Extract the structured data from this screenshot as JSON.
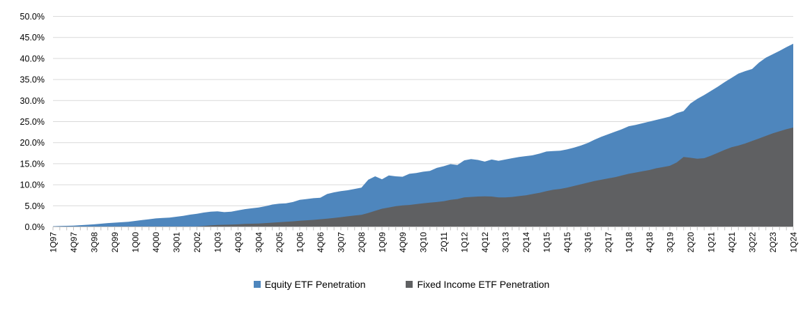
{
  "chart_data": {
    "type": "area",
    "stacked": false,
    "title": "",
    "xlabel": "",
    "ylabel": "",
    "ylim": [
      0,
      50
    ],
    "y_tick_step": 5,
    "y_tick_labels": [
      "0.0%",
      "5.0%",
      "10.0%",
      "15.0%",
      "20.0%",
      "25.0%",
      "30.0%",
      "35.0%",
      "40.0%",
      "45.0%",
      "50.0%"
    ],
    "x_tick_every": 3,
    "x_tick_labels": [
      "1Q97",
      "4Q97",
      "3Q98",
      "2Q99",
      "1Q00",
      "4Q00",
      "3Q01",
      "2Q02",
      "1Q03",
      "4Q03",
      "3Q04",
      "2Q05",
      "1Q06",
      "4Q06",
      "3Q07",
      "2Q08",
      "1Q09",
      "4Q09",
      "3Q10",
      "2Q11",
      "1Q12",
      "4Q12",
      "3Q13",
      "2Q14",
      "1Q15",
      "4Q15",
      "3Q16",
      "2Q17",
      "1Q18",
      "4Q18",
      "3Q19",
      "2Q20",
      "1Q21",
      "4Q21",
      "3Q22",
      "2Q23",
      "1Q24"
    ],
    "grid": true,
    "legend_position": "bottom",
    "colors": {
      "gridline": "#D9D9D9",
      "axis_line": "#BFBFBF",
      "tick_mark": "#BFBFBF",
      "label_text": "#000000"
    },
    "categories": [
      "1Q97",
      "2Q97",
      "3Q97",
      "4Q97",
      "1Q98",
      "2Q98",
      "3Q98",
      "4Q98",
      "1Q99",
      "2Q99",
      "3Q99",
      "4Q99",
      "1Q00",
      "2Q00",
      "3Q00",
      "4Q00",
      "1Q01",
      "2Q01",
      "3Q01",
      "4Q01",
      "1Q02",
      "2Q02",
      "3Q02",
      "4Q02",
      "1Q03",
      "2Q03",
      "3Q03",
      "4Q03",
      "1Q04",
      "2Q04",
      "3Q04",
      "4Q04",
      "1Q05",
      "2Q05",
      "3Q05",
      "4Q05",
      "1Q06",
      "2Q06",
      "3Q06",
      "4Q06",
      "1Q07",
      "2Q07",
      "3Q07",
      "4Q07",
      "1Q08",
      "2Q08",
      "3Q08",
      "4Q08",
      "1Q09",
      "2Q09",
      "3Q09",
      "4Q09",
      "1Q10",
      "2Q10",
      "3Q10",
      "4Q10",
      "1Q11",
      "2Q11",
      "3Q11",
      "4Q11",
      "1Q12",
      "2Q12",
      "3Q12",
      "4Q12",
      "1Q13",
      "2Q13",
      "3Q13",
      "4Q13",
      "1Q14",
      "2Q14",
      "3Q14",
      "4Q14",
      "1Q15",
      "2Q15",
      "3Q15",
      "4Q15",
      "1Q16",
      "2Q16",
      "3Q16",
      "4Q16",
      "1Q17",
      "2Q17",
      "3Q17",
      "4Q17",
      "1Q18",
      "2Q18",
      "3Q18",
      "4Q18",
      "1Q19",
      "2Q19",
      "3Q19",
      "4Q19",
      "1Q20",
      "2Q20",
      "3Q20",
      "4Q20",
      "1Q21",
      "2Q21",
      "3Q21",
      "4Q21",
      "1Q22",
      "2Q22",
      "3Q22",
      "4Q22",
      "1Q23",
      "2Q23",
      "3Q23",
      "4Q23",
      "1Q24"
    ],
    "series": [
      {
        "name": "Equity ETF Penetration",
        "color": "#4E86BD",
        "values": [
          0.15,
          0.2,
          0.25,
          0.3,
          0.4,
          0.5,
          0.6,
          0.75,
          0.9,
          1.0,
          1.1,
          1.2,
          1.4,
          1.6,
          1.8,
          2.0,
          2.1,
          2.2,
          2.4,
          2.6,
          2.9,
          3.1,
          3.4,
          3.6,
          3.7,
          3.5,
          3.6,
          3.9,
          4.2,
          4.4,
          4.6,
          4.9,
          5.3,
          5.5,
          5.6,
          5.9,
          6.4,
          6.6,
          6.8,
          6.9,
          7.8,
          8.2,
          8.5,
          8.7,
          9.0,
          9.3,
          11.2,
          12.0,
          11.3,
          12.2,
          12.0,
          11.9,
          12.6,
          12.8,
          13.1,
          13.3,
          14.0,
          14.4,
          14.9,
          14.7,
          15.8,
          16.1,
          15.9,
          15.5,
          16.0,
          15.7,
          16.0,
          16.3,
          16.6,
          16.8,
          17.0,
          17.4,
          17.9,
          18.0,
          18.1,
          18.4,
          18.8,
          19.3,
          19.9,
          20.7,
          21.4,
          22.0,
          22.6,
          23.2,
          23.9,
          24.2,
          24.6,
          25.0,
          25.4,
          25.8,
          26.2,
          27.0,
          27.5,
          29.3,
          30.4,
          31.3,
          32.3,
          33.3,
          34.4,
          35.4,
          36.4,
          37.0,
          37.5,
          39.0,
          40.2,
          41.0,
          41.8,
          42.7,
          43.5
        ]
      },
      {
        "name": "Fixed Income ETF Penetration",
        "color": "#5F6062",
        "values": [
          0,
          0,
          0,
          0,
          0,
          0,
          0,
          0,
          0,
          0,
          0,
          0,
          0,
          0,
          0,
          0,
          0,
          0,
          0,
          0,
          0.0,
          0.1,
          0.2,
          0.35,
          0.45,
          0.5,
          0.55,
          0.6,
          0.7,
          0.75,
          0.8,
          0.9,
          1.0,
          1.1,
          1.2,
          1.3,
          1.45,
          1.55,
          1.65,
          1.8,
          1.95,
          2.1,
          2.3,
          2.5,
          2.7,
          2.85,
          3.3,
          3.8,
          4.3,
          4.6,
          4.9,
          5.1,
          5.2,
          5.4,
          5.6,
          5.75,
          5.9,
          6.1,
          6.4,
          6.6,
          7.0,
          7.1,
          7.2,
          7.25,
          7.2,
          7.0,
          7.0,
          7.1,
          7.3,
          7.5,
          7.8,
          8.1,
          8.5,
          8.8,
          9.0,
          9.3,
          9.7,
          10.1,
          10.5,
          10.9,
          11.2,
          11.5,
          11.8,
          12.2,
          12.6,
          12.9,
          13.2,
          13.5,
          13.9,
          14.2,
          14.5,
          15.3,
          16.6,
          16.4,
          16.2,
          16.3,
          16.9,
          17.6,
          18.3,
          18.9,
          19.3,
          19.8,
          20.4,
          21.0,
          21.6,
          22.2,
          22.7,
          23.2,
          23.6
        ]
      }
    ]
  }
}
